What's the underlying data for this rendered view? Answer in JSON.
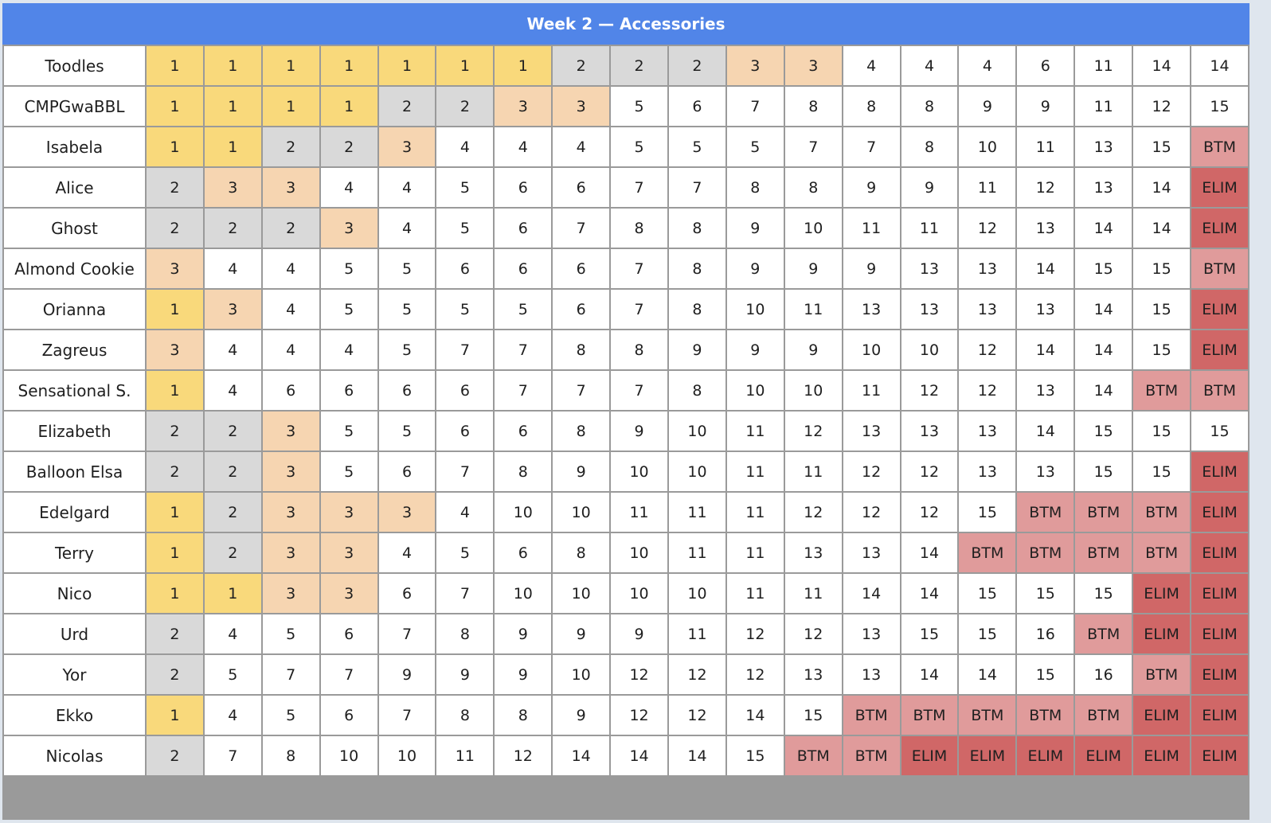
{
  "title": "Week 2 — Accessories",
  "colors": {
    "header": "#5185e8",
    "rank_1": "#f9d97b",
    "rank_2": "#d9d9d9",
    "rank_3": "#f6d5b1",
    "btm": "#e09b9b",
    "elim": "#d06767"
  },
  "rows": [
    {
      "name": "Toodles",
      "cells": [
        "1",
        "1",
        "1",
        "1",
        "1",
        "1",
        "1",
        "2",
        "2",
        "2",
        "3",
        "3",
        "4",
        "4",
        "4",
        "6",
        "11",
        "14",
        "14"
      ]
    },
    {
      "name": "CMPGwaBBL",
      "cells": [
        "1",
        "1",
        "1",
        "1",
        "2",
        "2",
        "3",
        "3",
        "5",
        "6",
        "7",
        "8",
        "8",
        "8",
        "9",
        "9",
        "11",
        "12",
        "15"
      ]
    },
    {
      "name": "Isabela",
      "cells": [
        "1",
        "1",
        "2",
        "2",
        "3",
        "4",
        "4",
        "4",
        "5",
        "5",
        "5",
        "7",
        "7",
        "8",
        "10",
        "11",
        "13",
        "15",
        "BTM"
      ]
    },
    {
      "name": "Alice",
      "cells": [
        "2",
        "3",
        "3",
        "4",
        "4",
        "5",
        "6",
        "6",
        "7",
        "7",
        "8",
        "8",
        "9",
        "9",
        "11",
        "12",
        "13",
        "14",
        "ELIM"
      ]
    },
    {
      "name": "Ghost",
      "cells": [
        "2",
        "2",
        "2",
        "3",
        "4",
        "5",
        "6",
        "7",
        "8",
        "8",
        "9",
        "10",
        "11",
        "11",
        "12",
        "13",
        "14",
        "14",
        "ELIM"
      ]
    },
    {
      "name": "Almond Cookie",
      "cells": [
        "3",
        "4",
        "4",
        "5",
        "5",
        "6",
        "6",
        "6",
        "7",
        "8",
        "9",
        "9",
        "9",
        "13",
        "13",
        "14",
        "15",
        "15",
        "BTM"
      ]
    },
    {
      "name": "Orianna",
      "cells": [
        "1",
        "3",
        "4",
        "5",
        "5",
        "5",
        "5",
        "6",
        "7",
        "8",
        "10",
        "11",
        "13",
        "13",
        "13",
        "13",
        "14",
        "15",
        "ELIM"
      ]
    },
    {
      "name": "Zagreus",
      "cells": [
        "3",
        "4",
        "4",
        "4",
        "5",
        "7",
        "7",
        "8",
        "8",
        "9",
        "9",
        "9",
        "10",
        "10",
        "12",
        "14",
        "14",
        "15",
        "ELIM"
      ]
    },
    {
      "name": "Sensational S.",
      "cells": [
        "1",
        "4",
        "6",
        "6",
        "6",
        "6",
        "7",
        "7",
        "7",
        "8",
        "10",
        "10",
        "11",
        "12",
        "12",
        "13",
        "14",
        "BTM",
        "BTM"
      ]
    },
    {
      "name": "Elizabeth",
      "cells": [
        "2",
        "2",
        "3",
        "5",
        "5",
        "6",
        "6",
        "8",
        "9",
        "10",
        "11",
        "12",
        "13",
        "13",
        "13",
        "14",
        "15",
        "15",
        "15"
      ]
    },
    {
      "name": "Balloon Elsa",
      "cells": [
        "2",
        "2",
        "3",
        "5",
        "6",
        "7",
        "8",
        "9",
        "10",
        "10",
        "11",
        "11",
        "12",
        "12",
        "13",
        "13",
        "15",
        "15",
        "ELIM"
      ]
    },
    {
      "name": "Edelgard",
      "cells": [
        "1",
        "2",
        "3",
        "3",
        "3",
        "4",
        "10",
        "10",
        "11",
        "11",
        "11",
        "12",
        "12",
        "12",
        "15",
        "BTM",
        "BTM",
        "BTM",
        "ELIM"
      ]
    },
    {
      "name": "Terry",
      "cells": [
        "1",
        "2",
        "3",
        "3",
        "4",
        "5",
        "6",
        "8",
        "10",
        "11",
        "11",
        "13",
        "13",
        "14",
        "BTM",
        "BTM",
        "BTM",
        "BTM",
        "ELIM"
      ]
    },
    {
      "name": "Nico",
      "cells": [
        "1",
        "1",
        "3",
        "3",
        "6",
        "7",
        "10",
        "10",
        "10",
        "10",
        "11",
        "11",
        "14",
        "14",
        "15",
        "15",
        "15",
        "ELIM",
        "ELIM"
      ]
    },
    {
      "name": "Urd",
      "cells": [
        "2",
        "4",
        "5",
        "6",
        "7",
        "8",
        "9",
        "9",
        "9",
        "11",
        "12",
        "12",
        "13",
        "15",
        "15",
        "16",
        "BTM",
        "ELIM",
        "ELIM"
      ]
    },
    {
      "name": "Yor",
      "cells": [
        "2",
        "5",
        "7",
        "7",
        "9",
        "9",
        "9",
        "10",
        "12",
        "12",
        "12",
        "13",
        "13",
        "14",
        "14",
        "15",
        "16",
        "BTM",
        "ELIM"
      ]
    },
    {
      "name": "Ekko",
      "cells": [
        "1",
        "4",
        "5",
        "6",
        "7",
        "8",
        "8",
        "9",
        "12",
        "12",
        "14",
        "15",
        "BTM",
        "BTM",
        "BTM",
        "BTM",
        "BTM",
        "ELIM",
        "ELIM"
      ]
    },
    {
      "name": "Nicolas",
      "cells": [
        "2",
        "7",
        "8",
        "10",
        "10",
        "11",
        "12",
        "14",
        "14",
        "14",
        "15",
        "BTM",
        "BTM",
        "ELIM",
        "ELIM",
        "ELIM",
        "ELIM",
        "ELIM",
        "ELIM"
      ]
    }
  ]
}
